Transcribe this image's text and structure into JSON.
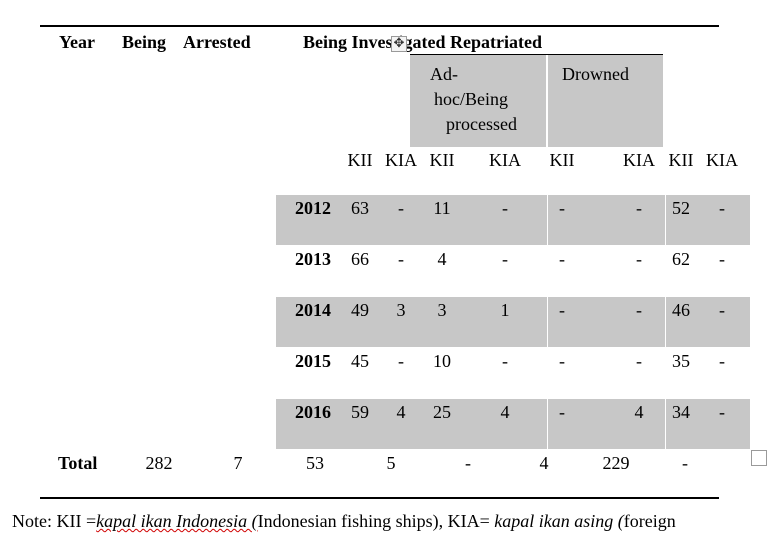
{
  "header": {
    "year": "Year",
    "being": "Being",
    "arrested": "Arrested",
    "investigated_repatriated": "Being Investigated Repatriated",
    "adhoc_line1": "Ad-",
    "adhoc_line2": "hoc/Being",
    "adhoc_line3": "processed",
    "drowned": "Drowned"
  },
  "subheaders": [
    "KII",
    "KIA",
    "KII",
    "KIA",
    "KII",
    "KIA",
    "KII",
    "KIA"
  ],
  "rows": [
    {
      "year": "2012",
      "cells": [
        "63",
        "-",
        "11",
        "-",
        "-",
        "-",
        "52",
        "-"
      ]
    },
    {
      "year": "2013",
      "cells": [
        "66",
        "-",
        "4",
        "-",
        "-",
        "-",
        "62",
        "-"
      ]
    },
    {
      "year": "2014",
      "cells": [
        "49",
        "3",
        "3",
        "1",
        "-",
        "-",
        "46",
        "-"
      ]
    },
    {
      "year": "2015",
      "cells": [
        "45",
        "-",
        "10",
        "-",
        "-",
        "-",
        "35",
        "-"
      ]
    },
    {
      "year": "2016",
      "cells": [
        "59",
        "4",
        "25",
        "4",
        "-",
        "4",
        "34",
        "-"
      ]
    }
  ],
  "total": {
    "label": "Total",
    "values": [
      "282",
      "7",
      "53",
      "5",
      "-",
      "4",
      "229",
      "-"
    ]
  },
  "note": {
    "prefix": "Note: KII =",
    "kii_term": "kapal ikan Indonesia (",
    "kii_gloss": "Indonesian fishing ships), KIA= ",
    "kia_term": "kapal ikan asing (",
    "kia_gloss": "foreign"
  },
  "icons": {
    "move_handle": "table-move-icon",
    "resize_handle": "table-resize-icon"
  }
}
